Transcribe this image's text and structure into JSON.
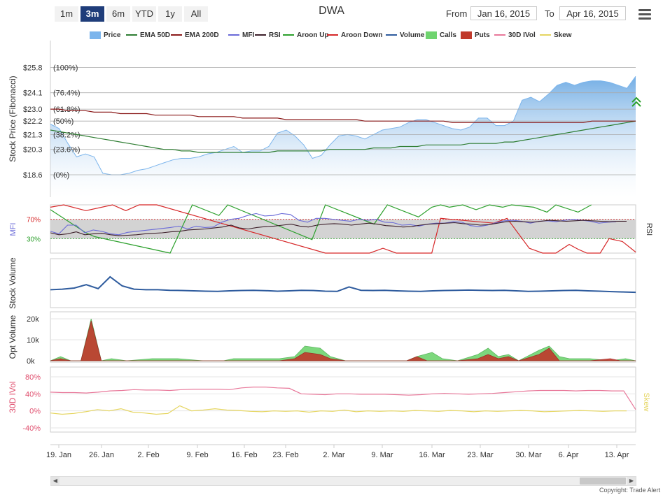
{
  "title": "DWA",
  "zoom_buttons": [
    "1m",
    "3m",
    "6m",
    "YTD",
    "1y",
    "All"
  ],
  "active_zoom": "3m",
  "range": {
    "from_label": "From",
    "from_value": "Jan 16, 2015",
    "to_label": "To",
    "to_value": "Apr 16, 2015"
  },
  "legend": [
    {
      "label": "Price",
      "color": "#7cb5ec",
      "symbol": "box"
    },
    {
      "label": "EMA 50D",
      "color": "#2e7d32",
      "symbol": "line"
    },
    {
      "label": "EMA 200D",
      "color": "#8b1a1a",
      "symbol": "line"
    },
    {
      "label": "MFI",
      "color": "#6a6ad8",
      "symbol": "line"
    },
    {
      "label": "RSI",
      "color": "#3d1f2a",
      "symbol": "line"
    },
    {
      "label": "Aroon Up",
      "color": "#2ca02c",
      "symbol": "line"
    },
    {
      "label": "Aroon Down",
      "color": "#d62728",
      "symbol": "line"
    },
    {
      "label": "Volume",
      "color": "#2f5c9e",
      "symbol": "line"
    },
    {
      "label": "Calls",
      "color": "#6fd46f",
      "symbol": "box"
    },
    {
      "label": "Puts",
      "color": "#c0392b",
      "symbol": "box"
    },
    {
      "label": "30D IVol",
      "color": "#e8789a",
      "symbol": "line"
    },
    {
      "label": "Skew",
      "color": "#e5d560",
      "symbol": "line"
    }
  ],
  "axis_titles": {
    "price": "Stock Price (Fibonacci)",
    "mfi": "MFI",
    "rsi": "RSI",
    "volume": "Stock Volume",
    "opt_volume": "Opt Volume",
    "ivol": "30D IVol",
    "skew": "Skew"
  },
  "copyright": "Copyright: Trade Alert",
  "chart_data": {
    "type": "line",
    "x_labels": [
      "19. Jan",
      "26. Jan",
      "2. Feb",
      "9. Feb",
      "16. Feb",
      "23. Feb",
      "2. Mar",
      "9. Mar",
      "16. Mar",
      "23. Mar",
      "30. Mar",
      "6. Apr",
      "13. Apr"
    ],
    "fib_levels": [
      {
        "value": 25.8,
        "price_label": "$25.8",
        "pct_label": "(100%)"
      },
      {
        "value": 24.1,
        "price_label": "$24.1",
        "pct_label": "(76.4%)"
      },
      {
        "value": 23.0,
        "price_label": "$23.0",
        "pct_label": "(61.8%)"
      },
      {
        "value": 22.2,
        "price_label": "$22.2",
        "pct_label": "(50%)"
      },
      {
        "value": 21.3,
        "price_label": "$21.3",
        "pct_label": "(38.2%)"
      },
      {
        "value": 20.3,
        "price_label": "$20.3",
        "pct_label": "(23.6%)"
      },
      {
        "value": 18.6,
        "price_label": "$18.6",
        "pct_label": "(0%)"
      }
    ],
    "price": [
      22.0,
      21.7,
      20.7,
      19.8,
      20.0,
      19.8,
      18.7,
      18.6,
      18.6,
      18.7,
      18.9,
      19.0,
      19.2,
      19.4,
      19.6,
      19.7,
      19.7,
      19.8,
      20.0,
      20.1,
      20.3,
      20.5,
      20.1,
      20.2,
      20.2,
      20.5,
      21.4,
      21.6,
      21.2,
      20.6,
      19.7,
      19.9,
      20.6,
      21.2,
      21.3,
      21.2,
      21.0,
      21.3,
      21.6,
      21.7,
      21.8,
      22.1,
      22.3,
      22.3,
      22.1,
      21.9,
      21.7,
      21.6,
      21.8,
      22.4,
      22.4,
      21.9,
      21.9,
      22.2,
      23.6,
      23.8,
      23.5,
      24.0,
      24.6,
      24.8,
      24.6,
      24.8,
      24.9,
      24.9,
      24.8,
      24.6,
      24.4,
      25.2
    ],
    "ema50": [
      21.6,
      21.5,
      21.4,
      21.3,
      21.2,
      21.1,
      21.0,
      20.9,
      20.8,
      20.7,
      20.6,
      20.5,
      20.4,
      20.3,
      20.3,
      20.2,
      20.2,
      20.1,
      20.1,
      20.1,
      20.1,
      20.1,
      20.1,
      20.1,
      20.1,
      20.1,
      20.2,
      20.2,
      20.2,
      20.2,
      20.2,
      20.2,
      20.3,
      20.3,
      20.3,
      20.3,
      20.3,
      20.4,
      20.4,
      20.4,
      20.5,
      20.5,
      20.5,
      20.6,
      20.6,
      20.6,
      20.6,
      20.6,
      20.7,
      20.7,
      20.7,
      20.7,
      20.8,
      20.8,
      20.9,
      21.0,
      21.1,
      21.2,
      21.3,
      21.4,
      21.5,
      21.6,
      21.7,
      21.8,
      21.9,
      22.0,
      22.1,
      22.2
    ],
    "ema200": [
      23.0,
      23.0,
      22.9,
      22.9,
      22.9,
      22.8,
      22.8,
      22.8,
      22.7,
      22.7,
      22.7,
      22.7,
      22.6,
      22.6,
      22.6,
      22.6,
      22.6,
      22.5,
      22.5,
      22.5,
      22.5,
      22.5,
      22.4,
      22.4,
      22.4,
      22.4,
      22.4,
      22.3,
      22.3,
      22.3,
      22.3,
      22.3,
      22.3,
      22.3,
      22.3,
      22.3,
      22.2,
      22.2,
      22.2,
      22.2,
      22.2,
      22.2,
      22.2,
      22.2,
      22.2,
      22.2,
      22.1,
      22.1,
      22.1,
      22.1,
      22.1,
      22.1,
      22.1,
      22.1,
      22.1,
      22.1,
      22.1,
      22.1,
      22.1,
      22.1,
      22.1,
      22.1,
      22.2,
      22.2,
      22.2,
      22.2,
      22.2,
      22.2
    ],
    "mfi": [
      45,
      40,
      58,
      58,
      42,
      48,
      45,
      40,
      38,
      43,
      45,
      47,
      49,
      51,
      53,
      56,
      50,
      56,
      53,
      54,
      64,
      70,
      72,
      78,
      82,
      77,
      78,
      82,
      80,
      68,
      64,
      72,
      72,
      70,
      68,
      66,
      70,
      68,
      70,
      64,
      63,
      58,
      59,
      56,
      60,
      62,
      62,
      65,
      64,
      57,
      55,
      58,
      63,
      67,
      68,
      66,
      62,
      66,
      67,
      65,
      68,
      70,
      68,
      66,
      62,
      64,
      65
    ],
    "rsi": [
      42,
      38,
      40,
      44,
      38,
      40,
      41,
      38,
      36,
      37,
      38,
      40,
      41,
      42,
      44,
      45,
      48,
      49,
      50,
      52,
      54,
      58,
      52,
      50,
      53,
      55,
      56,
      58,
      60,
      56,
      54,
      58,
      60,
      61,
      60,
      58,
      60,
      62,
      60,
      57,
      56,
      54,
      55,
      58,
      60,
      61,
      62,
      63,
      61,
      60,
      58,
      59,
      62,
      65,
      66,
      65,
      64,
      66,
      68,
      67,
      66,
      67,
      68,
      67,
      66,
      65,
      66,
      66
    ],
    "aroon_up": [
      [
        0,
        90
      ],
      [
        8,
        42
      ],
      [
        10,
        34
      ],
      [
        27,
        0
      ],
      [
        32,
        100
      ],
      [
        38,
        78
      ],
      [
        40,
        100
      ],
      [
        59,
        28
      ],
      [
        62,
        100
      ],
      [
        73,
        60
      ],
      [
        76,
        100
      ],
      [
        83,
        75
      ],
      [
        86,
        95
      ],
      [
        88,
        100
      ],
      [
        90,
        95
      ],
      [
        93,
        100
      ],
      [
        96,
        90
      ],
      [
        99,
        100
      ],
      [
        102,
        95
      ],
      [
        104,
        100
      ],
      [
        109,
        95
      ],
      [
        112,
        85
      ],
      [
        114,
        100
      ],
      [
        119,
        85
      ],
      [
        122,
        100
      ]
    ],
    "aroon_down": [
      [
        0,
        95
      ],
      [
        3,
        100
      ],
      [
        8,
        88
      ],
      [
        14,
        100
      ],
      [
        17,
        88
      ],
      [
        20,
        100
      ],
      [
        24,
        100
      ],
      [
        62,
        0
      ],
      [
        72,
        0
      ],
      [
        75,
        10
      ],
      [
        78,
        0
      ],
      [
        86,
        0
      ],
      [
        88,
        72
      ],
      [
        100,
        62
      ],
      [
        103,
        72
      ],
      [
        108,
        10
      ],
      [
        111,
        0
      ],
      [
        114,
        0
      ],
      [
        117,
        18
      ],
      [
        119,
        8
      ],
      [
        121,
        0
      ],
      [
        124,
        0
      ],
      [
        126,
        30
      ],
      [
        129,
        24
      ],
      [
        132,
        2
      ]
    ],
    "stock_volume": [
      0.35,
      0.4,
      0.5,
      0.8,
      0.45,
      1.5,
      0.7,
      0.4,
      0.35,
      0.35,
      0.3,
      0.28,
      0.25,
      0.22,
      0.2,
      0.25,
      0.28,
      0.3,
      0.27,
      0.22,
      0.25,
      0.3,
      0.28,
      0.22,
      0.2,
      0.6,
      0.3,
      0.28,
      0.3,
      0.25,
      0.22,
      0.2,
      0.25,
      0.28,
      0.3,
      0.32,
      0.3,
      0.28,
      0.3,
      0.25,
      0.2,
      0.22,
      0.25,
      0.28,
      0.3,
      0.25,
      0.22,
      0.18,
      0.15,
      0.12
    ],
    "calls": [
      [
        0,
        0
      ],
      [
        2,
        2
      ],
      [
        4,
        0
      ],
      [
        6,
        0
      ],
      [
        8,
        20
      ],
      [
        10,
        0
      ],
      [
        12,
        1
      ],
      [
        15,
        0
      ],
      [
        20,
        1
      ],
      [
        25,
        1
      ],
      [
        30,
        0
      ],
      [
        34,
        0
      ],
      [
        36,
        1
      ],
      [
        40,
        1
      ],
      [
        45,
        1
      ],
      [
        48,
        2
      ],
      [
        50,
        7
      ],
      [
        53,
        6
      ],
      [
        55,
        2
      ],
      [
        58,
        0
      ],
      [
        62,
        0
      ],
      [
        66,
        0
      ],
      [
        70,
        0
      ],
      [
        72,
        2
      ],
      [
        75,
        4
      ],
      [
        77,
        1
      ],
      [
        80,
        0
      ],
      [
        84,
        3
      ],
      [
        86,
        6
      ],
      [
        88,
        2
      ],
      [
        90,
        3
      ],
      [
        92,
        0
      ],
      [
        96,
        5
      ],
      [
        98,
        7
      ],
      [
        100,
        2
      ],
      [
        102,
        1
      ],
      [
        106,
        1
      ],
      [
        110,
        0
      ],
      [
        113,
        1
      ],
      [
        115,
        0
      ]
    ],
    "puts": [
      [
        0,
        0
      ],
      [
        2,
        1
      ],
      [
        4,
        0
      ],
      [
        6,
        0
      ],
      [
        8,
        19
      ],
      [
        10,
        0
      ],
      [
        12,
        0
      ],
      [
        20,
        0
      ],
      [
        36,
        0
      ],
      [
        40,
        0
      ],
      [
        45,
        0
      ],
      [
        48,
        1
      ],
      [
        50,
        4
      ],
      [
        53,
        3
      ],
      [
        55,
        1
      ],
      [
        58,
        0
      ],
      [
        66,
        0
      ],
      [
        70,
        0
      ],
      [
        72,
        2
      ],
      [
        74,
        0
      ],
      [
        77,
        0
      ],
      [
        80,
        0
      ],
      [
        84,
        1
      ],
      [
        86,
        3
      ],
      [
        88,
        1
      ],
      [
        90,
        2
      ],
      [
        92,
        0
      ],
      [
        96,
        3
      ],
      [
        98,
        6
      ],
      [
        100,
        0
      ],
      [
        106,
        0
      ],
      [
        110,
        1
      ],
      [
        112,
        0
      ],
      [
        115,
        0
      ]
    ],
    "ivol": [
      44,
      43,
      43,
      42,
      44,
      47,
      48,
      50,
      49,
      49,
      48,
      50,
      51,
      51,
      51,
      50,
      54,
      56,
      56,
      54,
      53,
      40,
      39,
      38,
      40,
      40,
      39,
      39,
      39,
      38,
      37,
      38,
      40,
      41,
      40,
      39,
      40,
      41,
      43,
      45,
      47,
      48,
      48,
      48,
      47,
      48,
      48,
      47,
      47,
      3
    ],
    "skew": [
      -5,
      -8,
      -6,
      -2,
      3,
      0,
      5,
      -3,
      -5,
      -8,
      -6,
      12,
      0,
      2,
      5,
      2,
      1,
      -1,
      -2,
      0,
      -1,
      0,
      -3,
      0,
      -1,
      2,
      -2,
      0,
      -1,
      0,
      -1,
      1,
      0,
      -1,
      1,
      0,
      -2,
      0,
      -1,
      0,
      1,
      0,
      -2,
      -1,
      0,
      1,
      0,
      -1,
      0,
      0
    ],
    "mfi_axis": {
      "ticks": [
        "70%",
        "30%"
      ]
    },
    "opt_axis": {
      "ticks": [
        "20k",
        "10k",
        "0k"
      ],
      "max": 22
    },
    "ivol_axis": {
      "ticks": [
        "80%",
        "40%",
        "0%",
        "-40%"
      ],
      "min": -40,
      "max": 80
    }
  }
}
